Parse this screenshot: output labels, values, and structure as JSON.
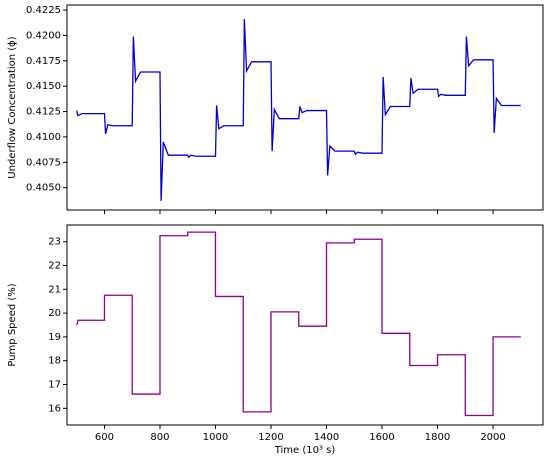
{
  "chart_data": [
    {
      "type": "line",
      "ylabel": "Underflow Concentration (ϕ)",
      "color": "#0000cc",
      "x": [
        500,
        504,
        520,
        600,
        604,
        612,
        630,
        700,
        704,
        712,
        730,
        800,
        804,
        812,
        830,
        900,
        904,
        912,
        930,
        1000,
        1004,
        1012,
        1030,
        1100,
        1104,
        1112,
        1130,
        1200,
        1204,
        1212,
        1230,
        1300,
        1304,
        1312,
        1330,
        1400,
        1404,
        1412,
        1430,
        1500,
        1504,
        1512,
        1530,
        1600,
        1604,
        1612,
        1630,
        1700,
        1704,
        1712,
        1730,
        1800,
        1804,
        1812,
        1830,
        1900,
        1904,
        1912,
        1930,
        2000,
        2004,
        2012,
        2030,
        2100
      ],
      "values": [
        0.4126,
        0.4121,
        0.4123,
        0.4123,
        0.4103,
        0.4112,
        0.4111,
        0.4111,
        0.4199,
        0.4155,
        0.4164,
        0.4164,
        0.4037,
        0.4095,
        0.4082,
        0.4082,
        0.408,
        0.4082,
        0.4081,
        0.4081,
        0.4131,
        0.4108,
        0.4111,
        0.4111,
        0.4216,
        0.4165,
        0.4174,
        0.4174,
        0.4086,
        0.4127,
        0.4118,
        0.4118,
        0.413,
        0.4124,
        0.4126,
        0.4126,
        0.4062,
        0.4091,
        0.4086,
        0.4086,
        0.4083,
        0.4085,
        0.4084,
        0.4084,
        0.4159,
        0.4122,
        0.413,
        0.413,
        0.4158,
        0.4143,
        0.4147,
        0.4147,
        0.414,
        0.4142,
        0.4141,
        0.4141,
        0.4199,
        0.417,
        0.4176,
        0.4176,
        0.4104,
        0.4138,
        0.4131,
        0.4131
      ],
      "xlim": [
        465,
        2180
      ],
      "xticks": [
        600,
        800,
        1000,
        1200,
        1400,
        1600,
        1800,
        2000
      ],
      "xtick_labels": false,
      "ylim": [
        0.4028,
        0.423
      ],
      "yticks": [
        {
          "value": 0.405,
          "label": "0.4050"
        },
        0.4075,
        {
          "value": 0.41,
          "label": "0.4100"
        },
        0.4125,
        {
          "value": 0.415,
          "label": "0.4150"
        },
        0.4175,
        {
          "value": 0.42,
          "label": "0.4200"
        },
        0.4225
      ]
    },
    {
      "type": "line",
      "ylabel": "Pump Speed (%)",
      "xlabel": "Time (10³ s)",
      "color": "#8b008b",
      "x": [
        500,
        505,
        600,
        600,
        700,
        700,
        800,
        800,
        900,
        900,
        1000,
        1000,
        1100,
        1100,
        1200,
        1200,
        1300,
        1300,
        1400,
        1400,
        1500,
        1500,
        1600,
        1600,
        1700,
        1700,
        1800,
        1800,
        1900,
        1900,
        2000,
        2000,
        2100
      ],
      "values": [
        19.5,
        19.7,
        19.7,
        20.75,
        20.75,
        16.6,
        16.6,
        23.25,
        23.25,
        23.4,
        23.4,
        20.7,
        20.7,
        15.85,
        15.85,
        20.05,
        20.05,
        19.45,
        19.45,
        22.95,
        22.95,
        23.1,
        23.1,
        19.15,
        19.15,
        17.8,
        17.8,
        18.25,
        18.25,
        15.7,
        15.7,
        19.0,
        19.0
      ],
      "xlim": [
        465,
        2180
      ],
      "xticks": [
        600,
        800,
        1000,
        1200,
        1400,
        1600,
        1800,
        2000
      ],
      "xtick_labels": true,
      "ylim": [
        15.3,
        23.7
      ],
      "yticks": [
        16,
        17,
        18,
        19,
        20,
        21,
        22,
        23
      ]
    }
  ]
}
